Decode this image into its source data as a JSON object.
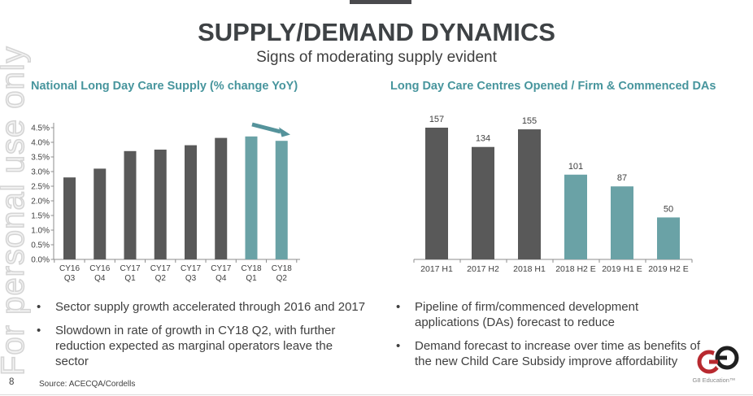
{
  "slide": {
    "title": "SUPPLY/DEMAND DYNAMICS",
    "subtitle": "Signs of moderating supply evident",
    "watermark": "For personal use only",
    "page_number": "8",
    "source_note": "Source: ACECQA/Cordells",
    "logo_caption": "G8 Education™",
    "bullet_char": "•"
  },
  "colors": {
    "heading_teal": "#47959D",
    "bar_dark": "#595959",
    "bar_teal": "#6AA2A6",
    "arrow_teal": "#55939B",
    "text_dark": "#3F3F3F",
    "axis_gray": "#8C8C8C",
    "logo_red": "#B8292F",
    "logo_black": "#1F1F1F"
  },
  "left_panel": {
    "heading": "National Long Day Care Supply (% change YoY)",
    "bullets": [
      "Sector supply growth accelerated through 2016 and 2017",
      "Slowdown in rate of growth in CY18 Q2, with further\nreduction expected as marginal operators leave the\nsector"
    ]
  },
  "right_panel": {
    "heading": "Long Day Care Centres Opened / Firm & Commenced DAs",
    "bullets": [
      "Pipeline of firm/commenced development\napplications (DAs) forecast to reduce",
      "Demand forecast to increase over time as benefits of\nthe new Child Care Subsidy improve affordability"
    ]
  },
  "chart_data": [
    {
      "id": "supply-chart",
      "type": "bar",
      "title": "National Long Day Care Supply (% change YoY)",
      "categories": [
        "CY16 Q3",
        "CY16 Q4",
        "CY17 Q1",
        "CY17 Q2",
        "CY17 Q3",
        "CY17 Q4",
        "CY18 Q1",
        "CY18 Q2"
      ],
      "values": [
        2.8,
        3.1,
        3.7,
        3.75,
        3.9,
        4.15,
        4.2,
        4.05
      ],
      "unit": "%",
      "ylim": [
        0,
        4.5
      ],
      "ytick_step": 0.5,
      "bar_color_keys": [
        "bar_dark",
        "bar_dark",
        "bar_dark",
        "bar_dark",
        "bar_dark",
        "bar_dark",
        "bar_teal",
        "bar_teal"
      ],
      "grid": false,
      "legend": false,
      "data_labels": false,
      "annotation": "teal arrow sloping down-right above the CY18 Q1 and CY18 Q2 bars",
      "category_label_two_line": true
    },
    {
      "id": "centres-chart",
      "type": "bar",
      "title": "Long Day Care Centres Opened / Firm & Commenced DAs",
      "categories": [
        "2017 H1",
        "2017 H2",
        "2018 H1",
        "2018 H2 E",
        "2019 H1 E",
        "2019 H2 E"
      ],
      "values": [
        157,
        134,
        155,
        101,
        87,
        50
      ],
      "ylim": [
        0,
        170
      ],
      "bar_color_keys": [
        "bar_dark",
        "bar_dark",
        "bar_dark",
        "bar_teal",
        "bar_teal",
        "bar_teal"
      ],
      "grid": false,
      "legend": false,
      "data_labels": true,
      "category_label_two_line": false
    }
  ]
}
